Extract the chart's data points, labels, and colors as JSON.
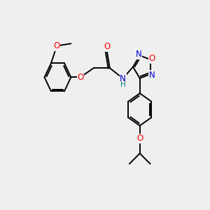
{
  "background_color": "#efefef",
  "bond_color": "#000000",
  "atom_colors": {
    "O": "#ff0000",
    "N": "#0000cc",
    "H": "#008080",
    "C": "#000000"
  },
  "figsize": [
    3.0,
    3.0
  ],
  "dpi": 100,
  "title_fontsize": 8,
  "bond_lw": 1.4,
  "font_size": 8.5
}
